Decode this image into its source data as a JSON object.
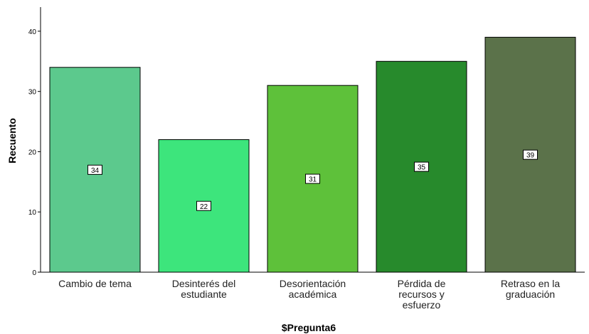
{
  "chart_data": {
    "type": "bar",
    "categories": [
      [
        "Cambio de tema"
      ],
      [
        "Desinterés del",
        "estudiante"
      ],
      [
        "Desorientación",
        "académica"
      ],
      [
        "Pérdida de",
        "recursos y",
        "esfuerzo"
      ],
      [
        "Retraso en la",
        "graduación"
      ]
    ],
    "values": [
      34,
      22,
      31,
      35,
      39
    ],
    "colors": [
      "#5cc98d",
      "#3de57c",
      "#5ec13a",
      "#278a2c",
      "#5b724a"
    ],
    "xlabel": "$Pregunta6",
    "ylabel": "Recuento",
    "ylim": [
      0,
      44
    ],
    "yticks": [
      0,
      10,
      20,
      30,
      40
    ],
    "grid": false,
    "data_labels": true
  }
}
